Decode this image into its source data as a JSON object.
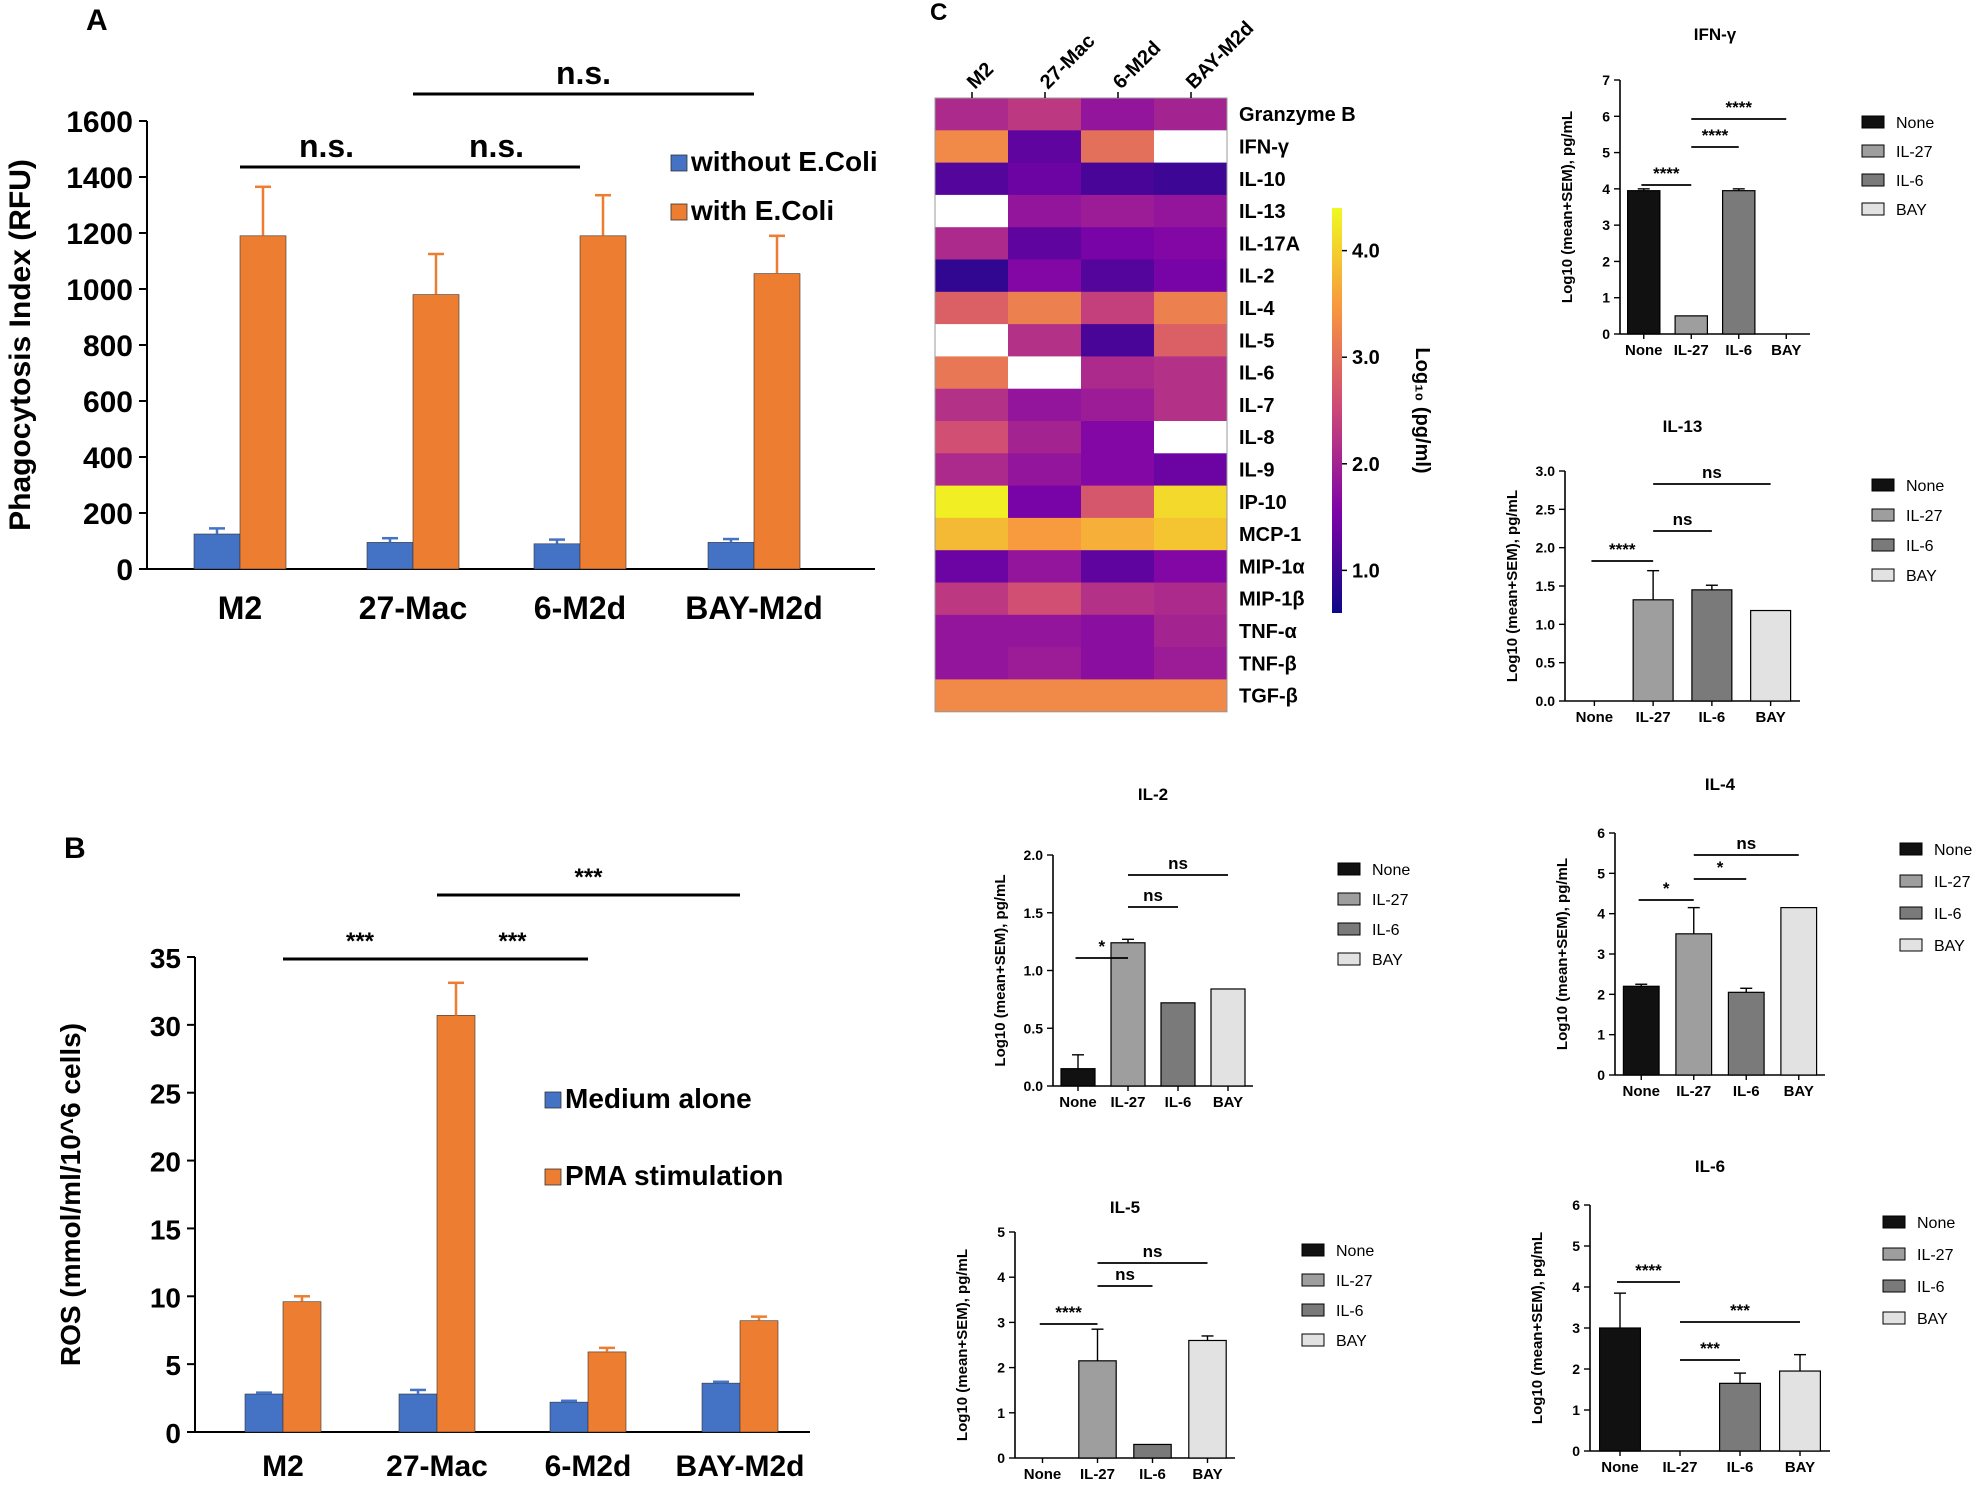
{
  "figure": {
    "panel_labels": [
      "A",
      "B",
      "C"
    ]
  },
  "colors": {
    "blue": "#4472C4",
    "orange": "#ED7D31",
    "none": "#111111",
    "il27": "#9e9e9e",
    "il6": "#7a7a7a",
    "bay": "#e2e2e2"
  },
  "chart_data": [
    {
      "id": "A",
      "type": "bar",
      "ylabel": "Phagocytosis Index (RFU)",
      "categories": [
        "M2",
        "27-Mac",
        "6-M2d",
        "BAY-M2d"
      ],
      "ylim": [
        0,
        1600
      ],
      "yticks": [
        "0",
        "200",
        "400",
        "600",
        "800",
        "1000",
        "1200",
        "1400",
        "1600"
      ],
      "series": [
        {
          "name": "without E.Coli",
          "values": [
            125,
            95,
            90,
            95
          ],
          "errors": [
            20,
            15,
            15,
            12
          ]
        },
        {
          "name": "with E.Coli",
          "values": [
            1190,
            980,
            1190,
            1055
          ],
          "errors": [
            175,
            145,
            145,
            135
          ]
        }
      ],
      "significance": [
        {
          "from": 0,
          "to": 1,
          "label": "n.s.",
          "level": 1
        },
        {
          "from": 1,
          "to": 2,
          "label": "n.s.",
          "level": 1
        },
        {
          "from": 1,
          "to": 3,
          "label": "n.s.",
          "level": 2
        }
      ]
    },
    {
      "id": "B",
      "type": "bar",
      "ylabel": "ROS (mmol/ml/10^6 cells)",
      "categories": [
        "M2",
        "27-Mac",
        "6-M2d",
        "BAY-M2d"
      ],
      "ylim": [
        0,
        35
      ],
      "yticks": [
        "0",
        "5",
        "10",
        "15",
        "20",
        "25",
        "30",
        "35"
      ],
      "series": [
        {
          "name": "Medium alone",
          "values": [
            2.8,
            2.8,
            2.2,
            3.6
          ],
          "errors": [
            0.1,
            0.3,
            0.1,
            0.1
          ]
        },
        {
          "name": "PMA stimulation",
          "values": [
            9.6,
            30.7,
            5.9,
            8.2
          ],
          "errors": [
            0.4,
            2.4,
            0.3,
            0.3
          ]
        }
      ],
      "significance": [
        {
          "from": 0,
          "to": 1,
          "label": "***",
          "level": 1
        },
        {
          "from": 1,
          "to": 2,
          "label": "***",
          "level": 1
        },
        {
          "from": 1,
          "to": 3,
          "label": "***",
          "level": 2
        }
      ]
    },
    {
      "id": "C-heatmap",
      "type": "heatmap",
      "columns": [
        "M2",
        "27-Mac",
        "6-M2d",
        "BAY-M2d"
      ],
      "rows": [
        "Granzyme B",
        "IFN-γ",
        "IL-10",
        "IL-13",
        "IL-17A",
        "IL-2",
        "IL-4",
        "IL-5",
        "IL-6",
        "IL-7",
        "IL-8",
        "IL-9",
        "IP-10",
        "MCP-1",
        "MIP-1α",
        "MIP-1β",
        "TNF-α",
        "TNF-β",
        "TGF-β"
      ],
      "colorbar_label": "Log₁₀ (pg/ml)",
      "colorbar_ticks": [
        "1.0",
        "2.0",
        "3.0",
        "4.0"
      ],
      "colorbar_range": [
        0.6,
        4.4
      ],
      "values": [
        [
          2.1,
          2.3,
          1.8,
          2.0
        ],
        [
          3.3,
          1.3,
          3.0,
          null
        ],
        [
          1.2,
          1.4,
          1.1,
          1.0
        ],
        [
          null,
          1.8,
          1.9,
          1.8
        ],
        [
          2.1,
          1.3,
          1.5,
          1.6
        ],
        [
          0.9,
          1.6,
          1.2,
          1.5
        ],
        [
          2.8,
          3.2,
          2.4,
          3.2
        ],
        [
          null,
          2.2,
          1.1,
          2.8
        ],
        [
          3.1,
          null,
          2.1,
          2.2
        ],
        [
          2.2,
          1.8,
          1.9,
          2.2
        ],
        [
          2.6,
          2.0,
          1.6,
          null
        ],
        [
          2.1,
          1.8,
          1.6,
          1.4
        ],
        [
          4.3,
          1.5,
          2.7,
          4.1
        ],
        [
          3.8,
          3.5,
          3.7,
          3.9
        ],
        [
          1.4,
          1.8,
          1.3,
          1.6
        ],
        [
          2.3,
          2.6,
          2.2,
          2.1
        ],
        [
          1.8,
          1.8,
          1.7,
          2.0
        ],
        [
          1.8,
          1.9,
          1.7,
          1.9
        ],
        [
          3.3,
          3.3,
          3.3,
          3.3
        ]
      ]
    },
    {
      "id": "IFN-γ",
      "type": "bar",
      "title": "IFN-γ",
      "ylabel": "Log10 (mean+SEM), pg/mL",
      "categories": [
        "None",
        "IL-27",
        "IL-6",
        "BAY"
      ],
      "ylim": [
        0,
        7
      ],
      "yticks": [
        "0",
        "1",
        "2",
        "3",
        "4",
        "5",
        "6",
        "7"
      ],
      "values": [
        3.95,
        0.5,
        3.95,
        0
      ],
      "errors": [
        0.05,
        0,
        0.05,
        0
      ],
      "legend": [
        "None",
        "IL-27",
        "IL-6",
        "BAY"
      ],
      "significance": [
        {
          "from": 0,
          "to": 1,
          "label": "****",
          "level": 1
        },
        {
          "from": 1,
          "to": 2,
          "label": "****",
          "level": 2
        },
        {
          "from": 1,
          "to": 3,
          "label": "****",
          "level": 3
        }
      ]
    },
    {
      "id": "IL-13",
      "type": "bar",
      "title": "IL-13",
      "ylabel": "Log10 (mean+SEM), pg/mL",
      "categories": [
        "None",
        "IL-27",
        "IL-6",
        "BAY"
      ],
      "ylim": [
        0,
        3
      ],
      "yticks": [
        "0.0",
        "0.5",
        "1.0",
        "1.5",
        "2.0",
        "2.5",
        "3.0"
      ],
      "values": [
        0,
        1.32,
        1.45,
        1.18
      ],
      "errors": [
        0,
        0.38,
        0.06,
        0
      ],
      "legend": [
        "None",
        "IL-27",
        "IL-6",
        "BAY"
      ],
      "significance": [
        {
          "from": 0,
          "to": 1,
          "label": "****",
          "level": 1
        },
        {
          "from": 1,
          "to": 2,
          "label": "ns",
          "level": 2
        },
        {
          "from": 1,
          "to": 3,
          "label": "ns",
          "level": 3
        }
      ]
    },
    {
      "id": "IL-2",
      "type": "bar",
      "title": "IL-2",
      "ylabel": "Log10 (mean+SEM), pg/mL",
      "categories": [
        "None",
        "IL-27",
        "IL-6",
        "BAY"
      ],
      "ylim": [
        0,
        2
      ],
      "yticks": [
        "0.0",
        "0.5",
        "1.0",
        "1.5",
        "2.0"
      ],
      "values": [
        0.15,
        1.24,
        0.72,
        0.84
      ],
      "errors": [
        0.12,
        0.03,
        0,
        0
      ],
      "legend": [
        "None",
        "IL-27",
        "IL-6",
        "BAY"
      ],
      "significance": [
        {
          "from": 0,
          "to": 1,
          "label": "*",
          "level": 1
        },
        {
          "from": 1,
          "to": 2,
          "label": "ns",
          "level": 2
        },
        {
          "from": 1,
          "to": 3,
          "label": "ns",
          "level": 3
        }
      ]
    },
    {
      "id": "IL-4",
      "type": "bar",
      "title": "IL-4",
      "ylabel": "Log10 (mean+SEM), pg/mL",
      "categories": [
        "None",
        "IL-27",
        "IL-6",
        "BAY"
      ],
      "ylim": [
        0,
        6
      ],
      "yticks": [
        "0",
        "1",
        "2",
        "3",
        "4",
        "5",
        "6"
      ],
      "values": [
        2.2,
        3.5,
        2.05,
        4.15
      ],
      "errors": [
        0.05,
        0.65,
        0.1,
        0
      ],
      "legend": [
        "None",
        "IL-27",
        "IL-6",
        "BAY"
      ],
      "significance": [
        {
          "from": 0,
          "to": 1,
          "label": "*",
          "level": 1
        },
        {
          "from": 1,
          "to": 2,
          "label": "*",
          "level": 2
        },
        {
          "from": 1,
          "to": 3,
          "label": "ns",
          "level": 3
        }
      ]
    },
    {
      "id": "IL-5",
      "type": "bar",
      "title": "IL-5",
      "ylabel": "Log10 (mean+SEM), pg/mL",
      "categories": [
        "None",
        "IL-27",
        "IL-6",
        "BAY"
      ],
      "ylim": [
        0,
        5
      ],
      "yticks": [
        "0",
        "1",
        "2",
        "3",
        "4",
        "5"
      ],
      "values": [
        0,
        2.15,
        0.3,
        2.6
      ],
      "errors": [
        0,
        0.7,
        0,
        0.1
      ],
      "legend": [
        "None",
        "IL-27",
        "IL-6",
        "BAY"
      ],
      "significance": [
        {
          "from": 0,
          "to": 1,
          "label": "****",
          "level": 1
        },
        {
          "from": 1,
          "to": 2,
          "label": "ns",
          "level": 2
        },
        {
          "from": 1,
          "to": 3,
          "label": "ns",
          "level": 3
        }
      ]
    },
    {
      "id": "IL-6",
      "type": "bar",
      "title": "IL-6",
      "ylabel": "Log10 (mean+SEM), pg/mL",
      "categories": [
        "None",
        "IL-27",
        "IL-6",
        "BAY"
      ],
      "ylim": [
        0,
        6
      ],
      "yticks": [
        "0",
        "1",
        "2",
        "3",
        "4",
        "5",
        "6"
      ],
      "values": [
        3.0,
        0,
        1.65,
        1.95
      ],
      "errors": [
        0.85,
        0,
        0.25,
        0.4
      ],
      "legend": [
        "None",
        "IL-27",
        "IL-6",
        "BAY"
      ],
      "significance": [
        {
          "from": 0,
          "to": 1,
          "label": "****",
          "level": 3
        },
        {
          "from": 1,
          "to": 2,
          "label": "***",
          "level": 1
        },
        {
          "from": 1,
          "to": 3,
          "label": "***",
          "level": 2
        }
      ]
    }
  ]
}
